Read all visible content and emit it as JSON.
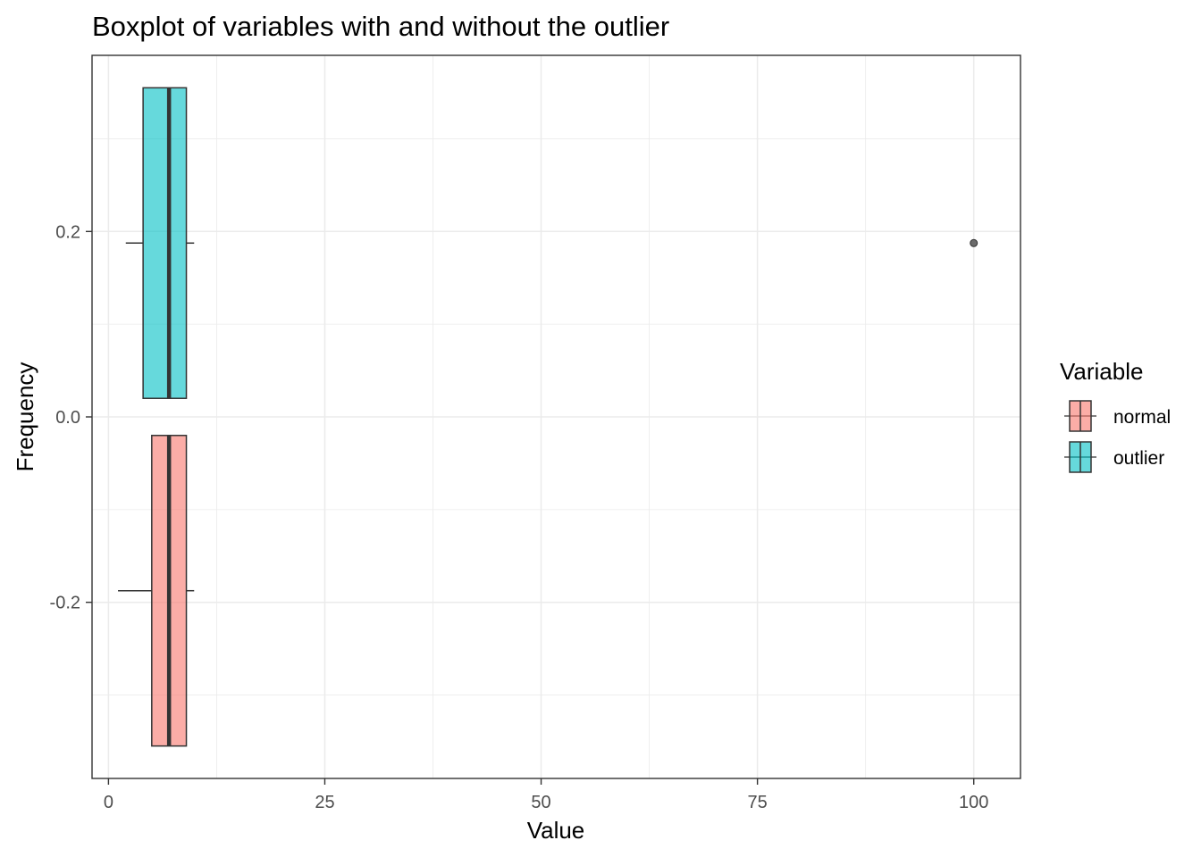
{
  "chart_data": {
    "type": "boxplot",
    "title": "Boxplot of variables with and without the outlier",
    "xlabel": "Value",
    "ylabel": "Frequency",
    "xlim": [
      -1.9,
      105.4
    ],
    "ylim": [
      -0.39,
      0.39
    ],
    "x_ticks": [
      0,
      25,
      50,
      75,
      100
    ],
    "x_tick_labels": [
      "0",
      "25",
      "50",
      "75",
      "100"
    ],
    "y_ticks": [
      -0.2,
      0.0,
      0.2
    ],
    "y_tick_labels": [
      "-0.2",
      "0.0",
      "0.2"
    ],
    "grid": true,
    "legend_title": "Variable",
    "legend_position": "right",
    "series": [
      {
        "name": "normal",
        "color": "#F8766D",
        "y_center": -0.1875,
        "y_range": [
          -0.355,
          -0.02
        ],
        "whisker_low": 1.1,
        "q1": 5.0,
        "median": 7.0,
        "q3": 9.0,
        "whisker_high": 9.9,
        "outliers": []
      },
      {
        "name": "outlier",
        "color": "#00BFC4",
        "y_center": 0.1875,
        "y_range": [
          0.02,
          0.355
        ],
        "whisker_low": 2.0,
        "q1": 4.0,
        "median": 7.0,
        "q3": 9.0,
        "whisker_high": 9.9,
        "outliers": [
          100
        ]
      }
    ]
  }
}
